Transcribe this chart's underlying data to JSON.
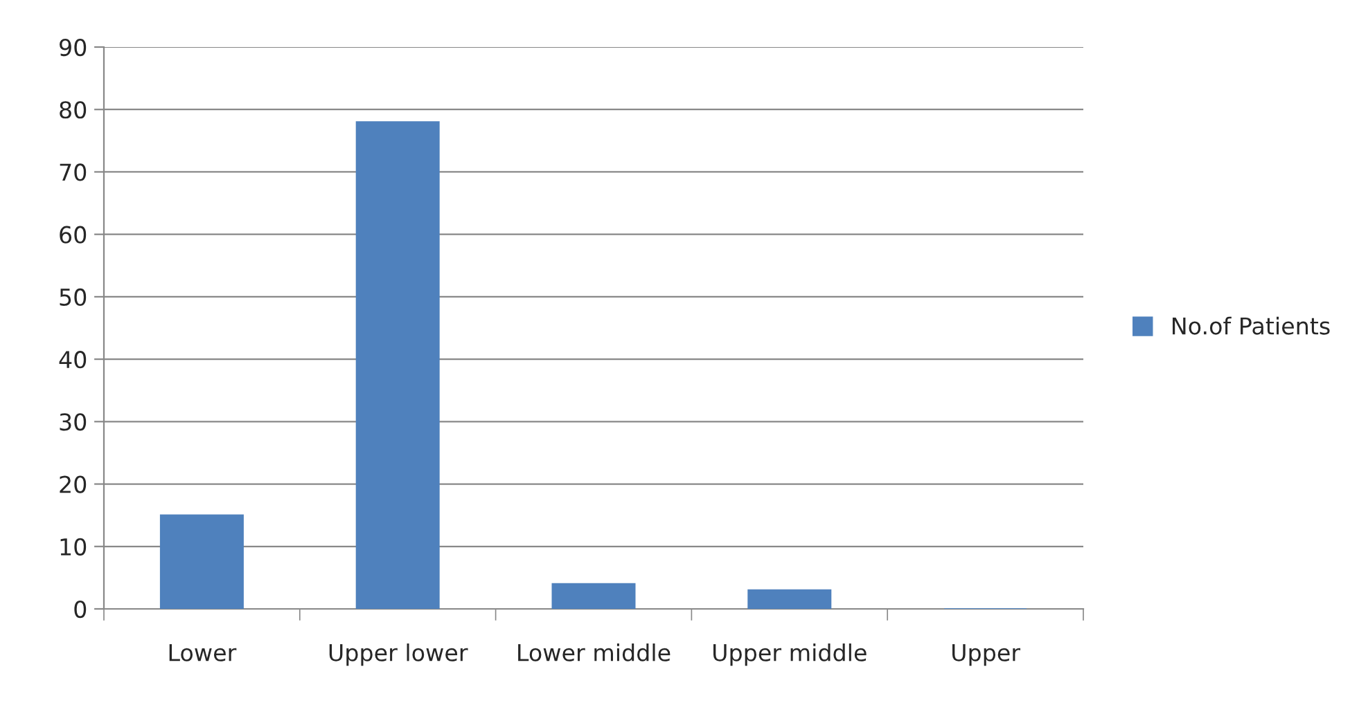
{
  "chart_data": {
    "type": "bar",
    "categories": [
      "Lower",
      "Upper lower",
      "Lower middle",
      "Upper middle",
      "Upper"
    ],
    "series": [
      {
        "name": "No.of Patients",
        "color": "#4f81bd",
        "values": [
          15,
          78,
          4,
          3,
          0
        ]
      }
    ],
    "ylim": [
      0,
      90
    ],
    "yticks": [
      0,
      10,
      20,
      30,
      40,
      50,
      60,
      70,
      80,
      90
    ],
    "grid": "y",
    "legend": "right"
  }
}
